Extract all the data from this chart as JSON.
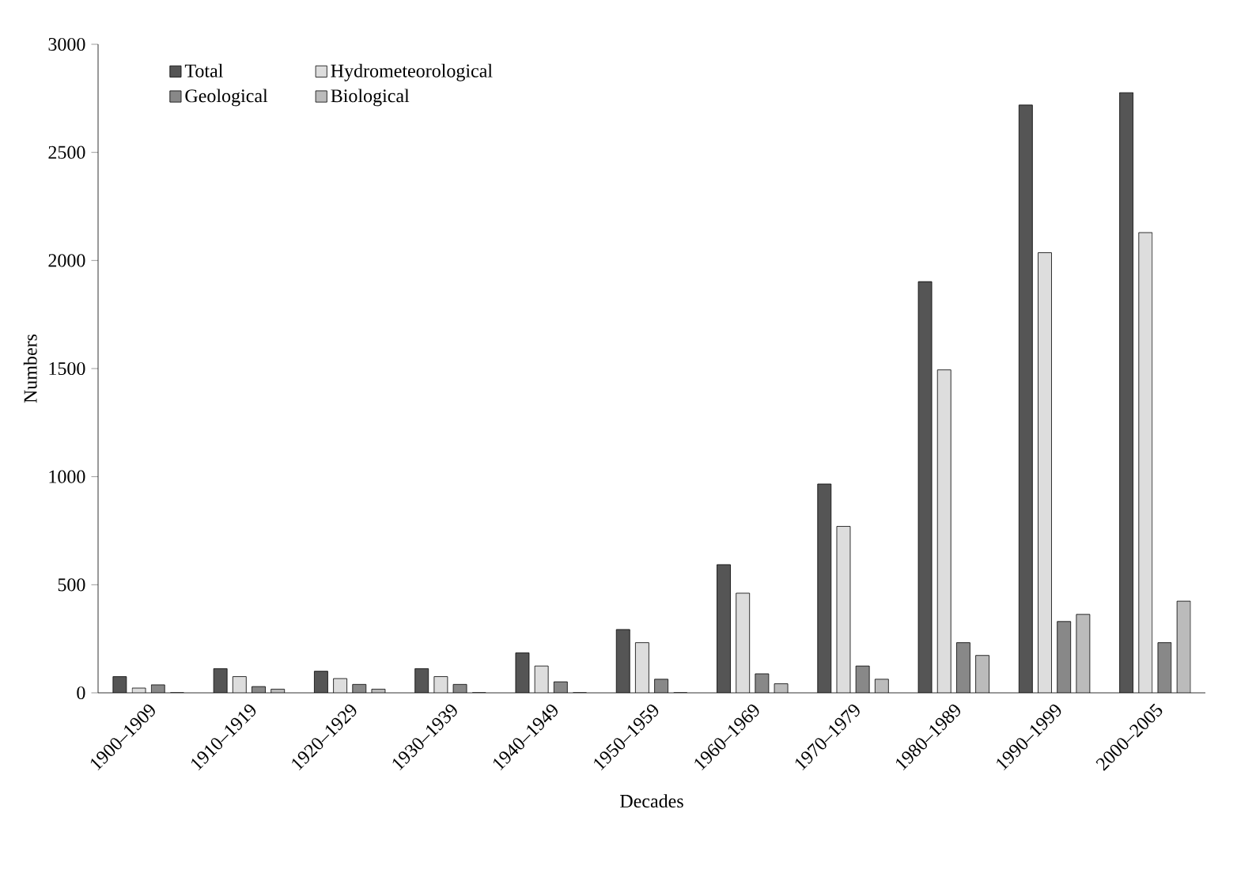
{
  "chart_data": {
    "type": "bar",
    "xlabel": "Decades",
    "ylabel": "Numbers",
    "categories": [
      "1900–1909",
      "1910–1919",
      "1920–1929",
      "1930–1939",
      "1940–1949",
      "1950–1959",
      "1960–1969",
      "1970–1979",
      "1980–1989",
      "1990–1999",
      "2000–2005"
    ],
    "series": [
      {
        "name": "Total",
        "color": "#555555",
        "values": [
          75,
          112,
          100,
          112,
          185,
          293,
          593,
          966,
          1902,
          2719,
          2777
        ]
      },
      {
        "name": "Hydrometeorological",
        "color": "#dddddd",
        "values": [
          22,
          75,
          66,
          75,
          124,
          232,
          461,
          770,
          1494,
          2036,
          2129
        ]
      },
      {
        "name": "Geological",
        "color": "#888888",
        "values": [
          37,
          29,
          39,
          39,
          51,
          63,
          88,
          124,
          232,
          330,
          232
        ]
      },
      {
        "name": "Biological",
        "color": "#bbbbbb",
        "values": [
          0,
          17,
          17,
          0,
          0,
          0,
          42,
          63,
          173,
          363,
          424
        ]
      }
    ],
    "ylim": [
      0,
      3000
    ],
    "yticks": [
      0,
      500,
      1000,
      1500,
      2000,
      2500,
      3000
    ],
    "legend": "top left",
    "grid": false
  }
}
